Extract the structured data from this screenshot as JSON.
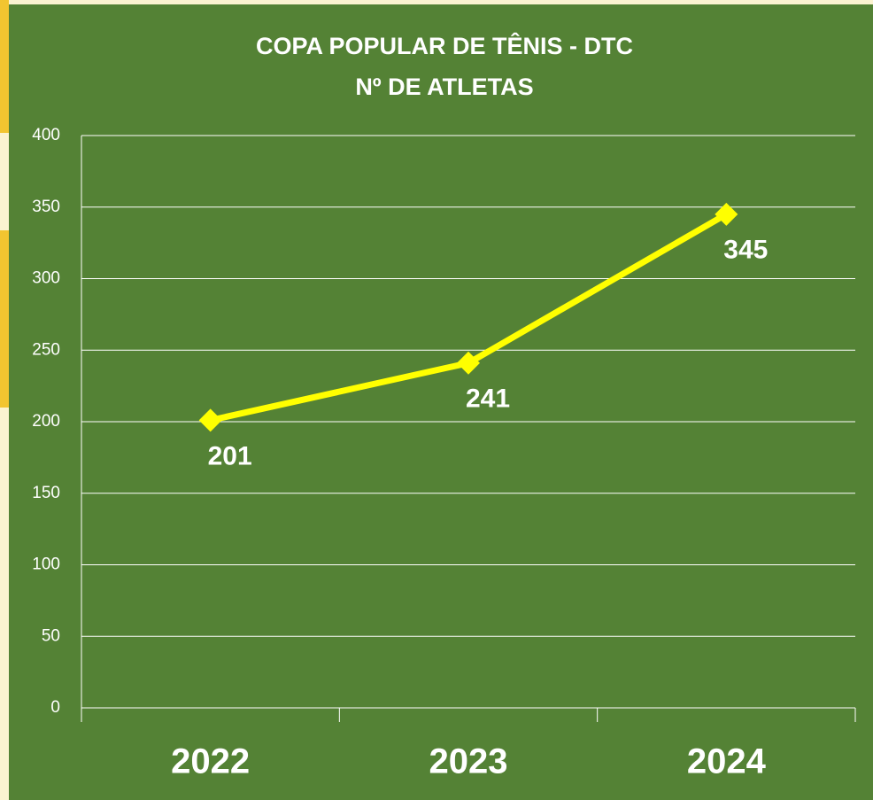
{
  "chart_data": {
    "type": "line",
    "title": [
      "COPA POPULAR DE TÊNIS - DTC",
      "Nº DE ATLETAS"
    ],
    "categories": [
      "2022",
      "2023",
      "2024"
    ],
    "series": [
      {
        "name": "Nº DE ATLETAS",
        "color": "#ffff00",
        "values": [
          201,
          241,
          345
        ]
      }
    ],
    "ylim": [
      0,
      400
    ],
    "yticks": [
      0,
      50,
      100,
      150,
      200,
      250,
      300,
      350,
      400
    ],
    "grid": true,
    "background": "#548235"
  }
}
